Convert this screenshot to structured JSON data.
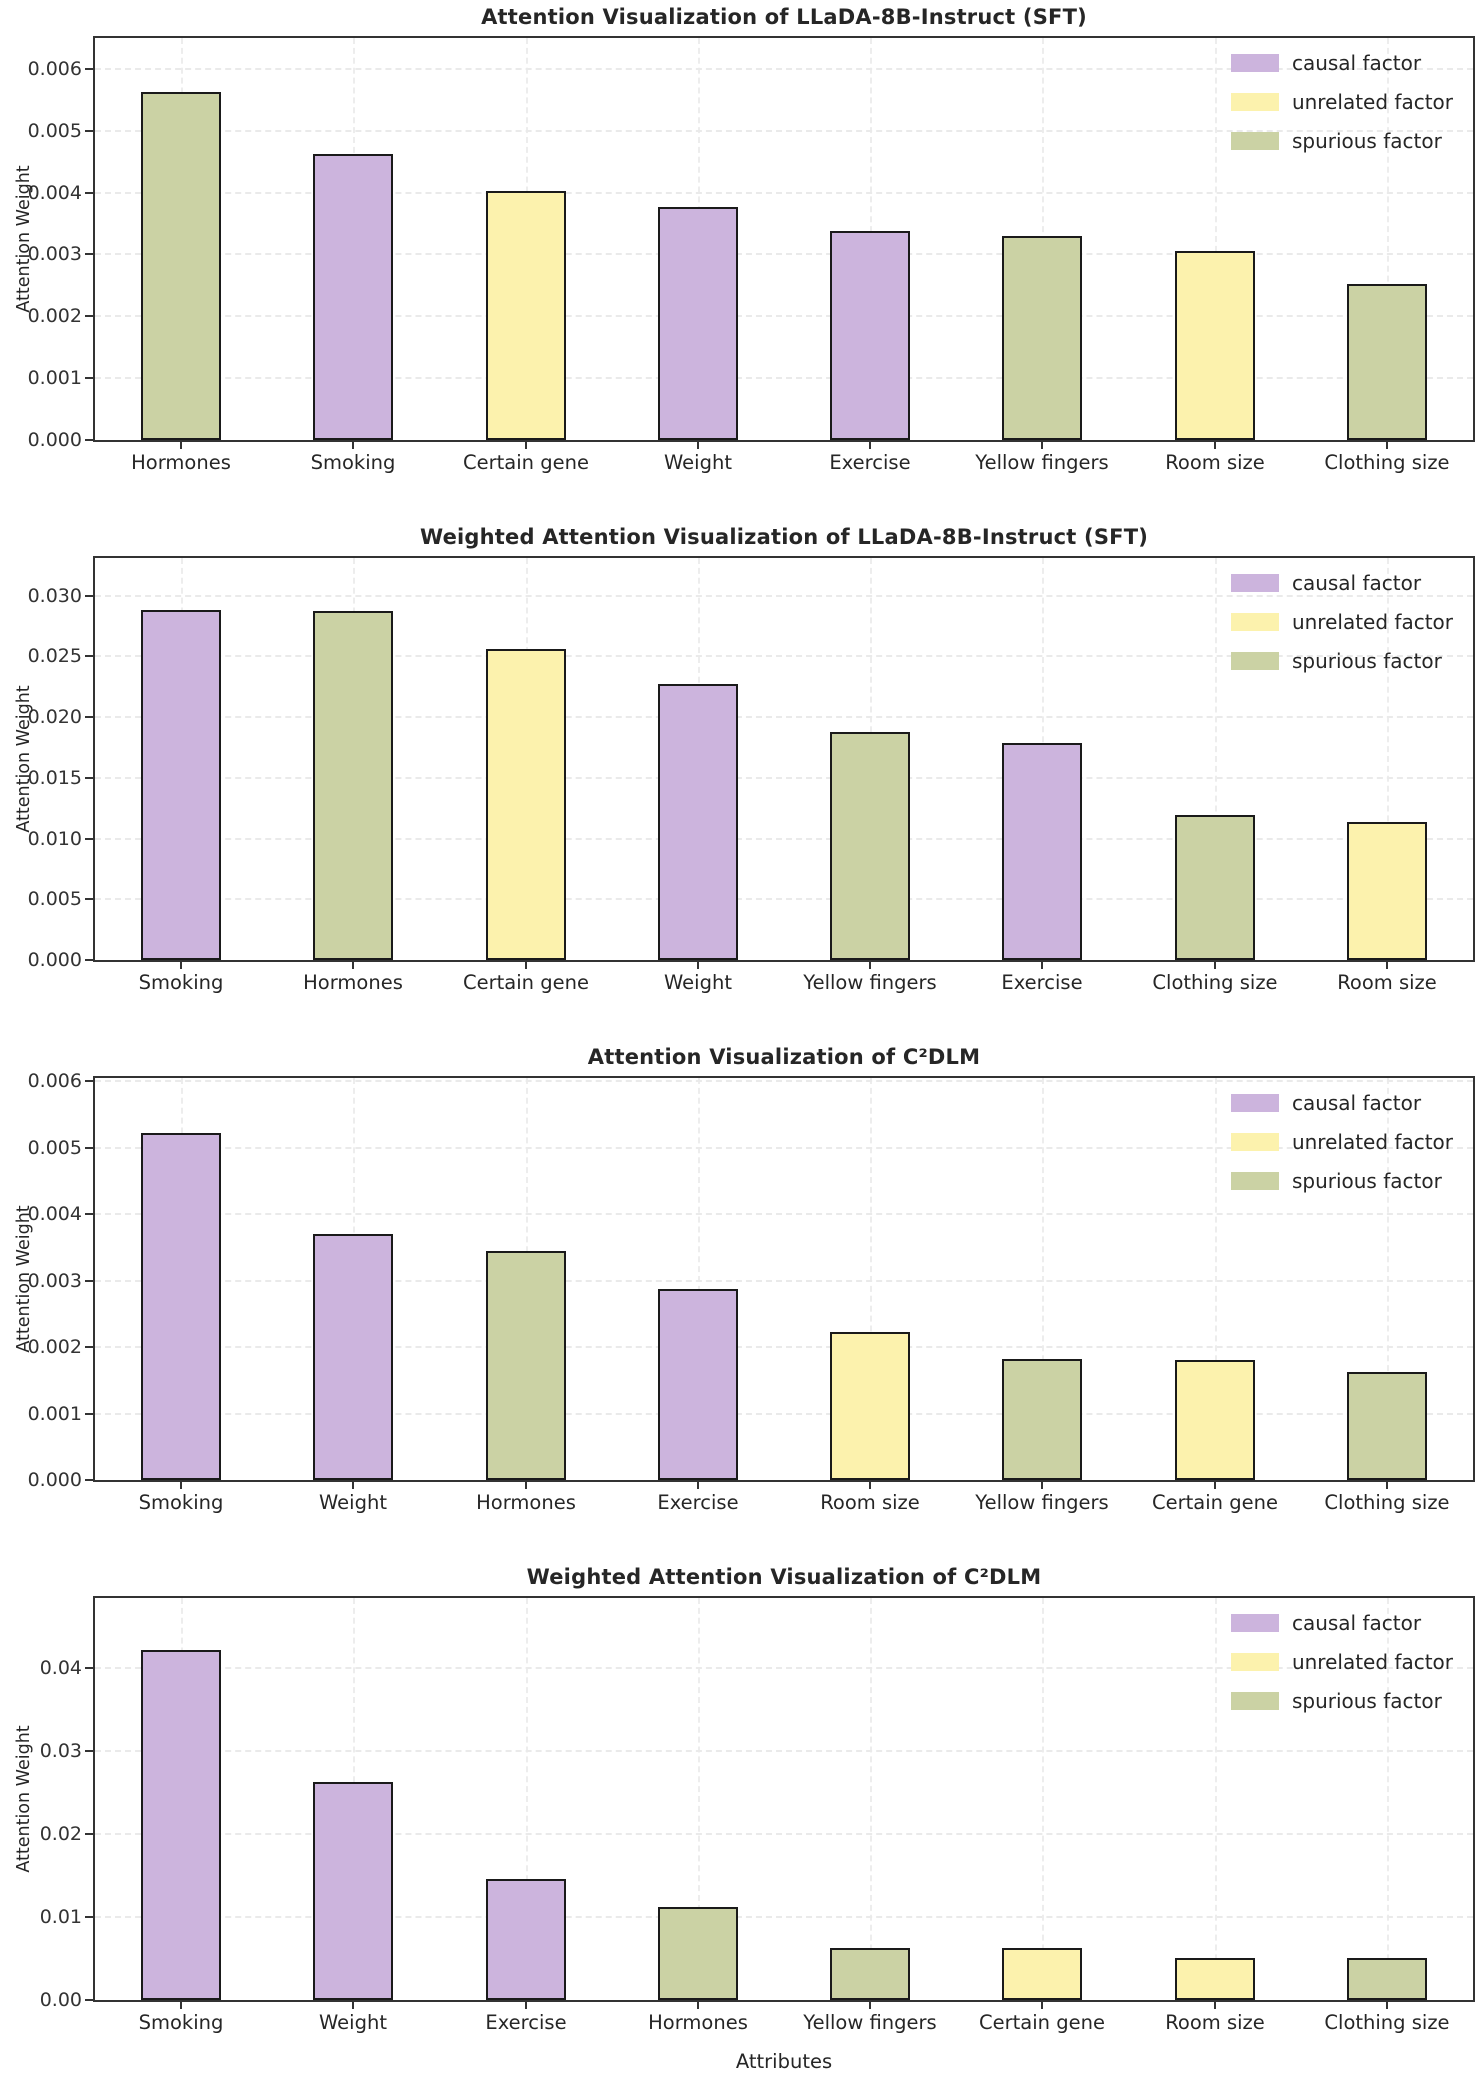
{
  "figure": {
    "ylabel": "Attention Weight",
    "xlabel": "Attributes",
    "legend": {
      "position": "upper right",
      "entries": [
        {
          "label": "causal factor",
          "factor": "causal",
          "color": "#ccb4dd"
        },
        {
          "label": "unrelated factor",
          "factor": "unrelated",
          "color": "#fcf2ad"
        },
        {
          "label": "spurious factor",
          "factor": "spurious",
          "color": "#cbd2a4"
        }
      ]
    },
    "colors": {
      "causal": "#ccb4dd",
      "unrelated": "#fcf2ad",
      "spurious": "#cbd2a4",
      "bar_edge": "#1a1a1a",
      "spine": "#333333",
      "grid": "#eaeaea",
      "text": "#262626"
    }
  },
  "chart_data": [
    {
      "type": "bar",
      "title": "Attention Visualization of LLaDA-8B-Instruct (SFT)",
      "ylabel": "Attention Weight",
      "xlabel": "",
      "grid": true,
      "categories": [
        "Hormones",
        "Smoking",
        "Certain gene",
        "Weight",
        "Exercise",
        "Yellow fingers",
        "Room size",
        "Clothing size"
      ],
      "values": [
        0.00562,
        0.00462,
        0.00403,
        0.00376,
        0.00338,
        0.0033,
        0.00306,
        0.00252
      ],
      "factors": [
        "spurious",
        "causal",
        "unrelated",
        "causal",
        "causal",
        "spurious",
        "unrelated",
        "spurious"
      ],
      "ytick_values": [
        0,
        0.001,
        0.002,
        0.003,
        0.004,
        0.005,
        0.006
      ],
      "ytick_labels": [
        "0.000",
        "0.001",
        "0.002",
        "0.003",
        "0.004",
        "0.005",
        "0.006"
      ],
      "ylim": [
        0,
        0.0065
      ]
    },
    {
      "type": "bar",
      "title": "Weighted Attention Visualization of LLaDA-8B-Instruct (SFT)",
      "ylabel": "Attention Weight",
      "xlabel": "",
      "grid": true,
      "categories": [
        "Smoking",
        "Hormones",
        "Certain gene",
        "Weight",
        "Yellow fingers",
        "Exercise",
        "Clothing size",
        "Room size"
      ],
      "values": [
        0.0288,
        0.0287,
        0.0256,
        0.0227,
        0.0188,
        0.0179,
        0.0119,
        0.0114
      ],
      "factors": [
        "causal",
        "spurious",
        "unrelated",
        "causal",
        "spurious",
        "causal",
        "spurious",
        "unrelated"
      ],
      "ytick_values": [
        0,
        0.005,
        0.01,
        0.015,
        0.02,
        0.025,
        0.03
      ],
      "ytick_labels": [
        "0.000",
        "0.005",
        "0.010",
        "0.015",
        "0.020",
        "0.025",
        "0.030"
      ],
      "ylim": [
        0,
        0.0331
      ]
    },
    {
      "type": "bar",
      "title": "Attention Visualization of C²DLM",
      "ylabel": "Attention Weight",
      "xlabel": "",
      "grid": true,
      "categories": [
        "Smoking",
        "Weight",
        "Hormones",
        "Exercise",
        "Room size",
        "Yellow fingers",
        "Certain gene",
        "Clothing size"
      ],
      "values": [
        0.00522,
        0.0037,
        0.00344,
        0.00288,
        0.00222,
        0.00182,
        0.0018,
        0.00163
      ],
      "factors": [
        "causal",
        "causal",
        "spurious",
        "causal",
        "unrelated",
        "spurious",
        "unrelated",
        "spurious"
      ],
      "ytick_values": [
        0,
        0.001,
        0.002,
        0.003,
        0.004,
        0.005,
        0.006
      ],
      "ytick_labels": [
        "0.000",
        "0.001",
        "0.002",
        "0.003",
        "0.004",
        "0.005",
        "0.006"
      ],
      "ylim": [
        0,
        0.00605
      ]
    },
    {
      "type": "bar",
      "title": "Weighted Attention Visualization of C²DLM",
      "ylabel": "Attention Weight",
      "xlabel": "Attributes",
      "grid": true,
      "categories": [
        "Smoking",
        "Weight",
        "Exercise",
        "Hormones",
        "Yellow fingers",
        "Certain gene",
        "Room size",
        "Clothing size"
      ],
      "values": [
        0.0421,
        0.0262,
        0.0146,
        0.0112,
        0.0063,
        0.0063,
        0.0051,
        0.005
      ],
      "factors": [
        "causal",
        "causal",
        "causal",
        "spurious",
        "spurious",
        "unrelated",
        "unrelated",
        "spurious"
      ],
      "ytick_values": [
        0,
        0.01,
        0.02,
        0.03,
        0.04
      ],
      "ytick_labels": [
        "0.00",
        "0.01",
        "0.02",
        "0.03",
        "0.04"
      ],
      "ylim": [
        0,
        0.0484
      ]
    }
  ]
}
